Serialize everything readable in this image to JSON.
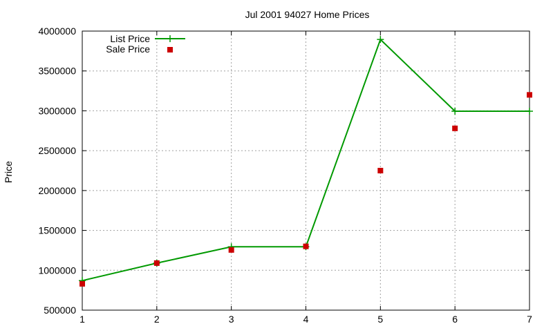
{
  "chart_data": {
    "type": "line",
    "title": "Jul 2001 94027 Home Prices",
    "xlabel": "",
    "ylabel": "Price",
    "xlim": [
      1,
      7
    ],
    "ylim": [
      500000,
      4000000
    ],
    "x_ticks": [
      1,
      2,
      3,
      4,
      5,
      6,
      7
    ],
    "y_ticks": [
      500000,
      1000000,
      1500000,
      2000000,
      2500000,
      3000000,
      3500000,
      4000000
    ],
    "grid": true,
    "legend_position": "top-left",
    "series": [
      {
        "name": "List Price",
        "style": "line+cross",
        "color": "#009900",
        "x": [
          1,
          2,
          3,
          4,
          5,
          6,
          7
        ],
        "values": [
          870000,
          1090000,
          1295000,
          1295000,
          3895000,
          2995000,
          2995000
        ]
      },
      {
        "name": "Sale Price",
        "style": "square-points",
        "color": "#cc0000",
        "x": [
          1,
          2,
          3,
          4,
          5,
          6,
          7
        ],
        "values": [
          830000,
          1090000,
          1255000,
          1300000,
          2250000,
          2780000,
          3200000
        ]
      }
    ]
  }
}
